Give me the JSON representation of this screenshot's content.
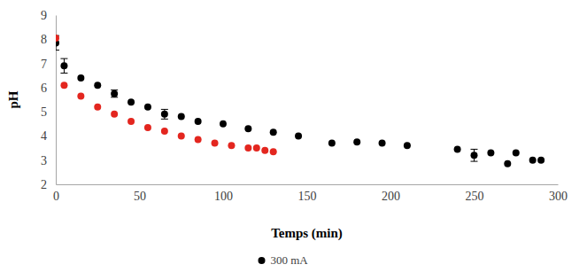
{
  "chart_data": {
    "type": "scatter",
    "x_label": "Temps (min)",
    "y_label": "pH",
    "xlim": [
      0,
      300
    ],
    "xticks": [
      0,
      50,
      100,
      150,
      200,
      250,
      300
    ],
    "ylim": [
      2,
      9
    ],
    "yticks": [
      2,
      3,
      4,
      5,
      6,
      7,
      8,
      9
    ],
    "grid": false,
    "legend": "bottom",
    "series": [
      {
        "name": "300 mA",
        "color": "#000000",
        "marker": "circle",
        "x": [
          0,
          5,
          15,
          25,
          35,
          45,
          55,
          65,
          75,
          85,
          100,
          115,
          130,
          145,
          165,
          180,
          195,
          210,
          240,
          250,
          260,
          270,
          275,
          285,
          290
        ],
        "values": [
          7.85,
          6.9,
          6.4,
          6.1,
          5.75,
          5.4,
          5.2,
          4.9,
          4.8,
          4.6,
          4.5,
          4.3,
          4.15,
          4.0,
          3.7,
          3.75,
          3.7,
          3.6,
          3.45,
          3.2,
          3.3,
          2.85,
          3.3,
          3.0,
          3.0
        ],
        "errors": [
          0.3,
          0.3,
          null,
          null,
          0.15,
          null,
          null,
          0.2,
          null,
          null,
          null,
          null,
          null,
          null,
          null,
          null,
          null,
          null,
          null,
          0.25,
          null,
          null,
          null,
          null,
          null
        ]
      },
      {
        "color": "#e3261f",
        "marker": "circle",
        "x": [
          0,
          5,
          15,
          25,
          35,
          45,
          55,
          65,
          75,
          85,
          95,
          105,
          115,
          120,
          125,
          130
        ],
        "values": [
          8.05,
          6.1,
          5.65,
          5.2,
          4.9,
          4.6,
          4.35,
          4.2,
          4.0,
          3.85,
          3.7,
          3.6,
          3.5,
          3.5,
          3.4,
          3.35
        ]
      }
    ]
  }
}
